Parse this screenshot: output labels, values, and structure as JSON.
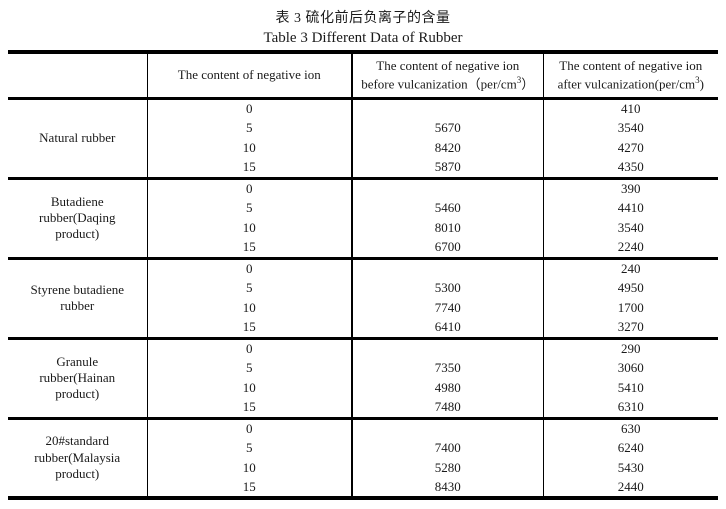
{
  "titles": {
    "chinese": "表 3  硫化前后负离子的含量",
    "english": "Table 3 Different Data of Rubber"
  },
  "table": {
    "headers": {
      "col1": "",
      "col2": "The content of negative ion",
      "col3": {
        "line1": "The content of negative ion",
        "line2_pre": "before vulcanization（per/cm",
        "sup": "3",
        "line2_post": "）"
      },
      "col4": {
        "line1": "The content of negative ion",
        "line2_pre": "after vulcanization(per/cm",
        "sup": "3",
        "line2_post": ")"
      }
    },
    "groups": [
      {
        "label": "Natural rubber",
        "label_lines": [
          "Natural rubber"
        ],
        "content": [
          "0",
          "5",
          "10",
          "15"
        ],
        "before": [
          "",
          "5670",
          "8420",
          "5870"
        ],
        "after": [
          "410",
          "3540",
          "4270",
          "4350"
        ]
      },
      {
        "label": "Butadiene rubber(Daqing product)",
        "label_lines": [
          "Butadiene",
          "rubber(Daqing",
          "product)"
        ],
        "content": [
          "0",
          "5",
          "10",
          "15"
        ],
        "before": [
          "",
          "5460",
          "8010",
          "6700"
        ],
        "after": [
          "390",
          "4410",
          "3540",
          "2240"
        ]
      },
      {
        "label": "Styrene butadiene rubber",
        "label_lines": [
          "Styrene butadiene",
          "rubber"
        ],
        "content": [
          "0",
          "5",
          "10",
          "15"
        ],
        "before": [
          "",
          "5300",
          "7740",
          "6410"
        ],
        "after": [
          "240",
          "4950",
          "1700",
          "3270"
        ]
      },
      {
        "label": "Granule rubber(Hainan product)",
        "label_lines": [
          "Granule",
          "rubber(Hainan",
          "product)"
        ],
        "content": [
          "0",
          "5",
          "10",
          "15"
        ],
        "before": [
          "",
          "7350",
          "4980",
          "7480"
        ],
        "after": [
          "290",
          "3060",
          "5410",
          "6310"
        ]
      },
      {
        "label": "20#standard rubber(Malaysia product)",
        "label_lines": [
          "20#standard",
          "rubber(Malaysia",
          "product)"
        ],
        "content": [
          "0",
          "5",
          "10",
          "15"
        ],
        "before": [
          "",
          "7400",
          "5280",
          "8430"
        ],
        "after": [
          "630",
          "6240",
          "5430",
          "2440"
        ]
      }
    ]
  },
  "colors": {
    "text": "#1a1a1a",
    "rule": "#000000",
    "background": "#ffffff"
  }
}
